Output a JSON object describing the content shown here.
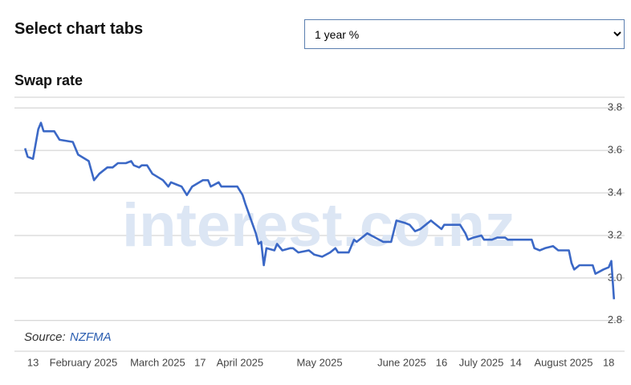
{
  "header": {
    "title": "Select chart tabs",
    "selector": "1 year %"
  },
  "chart_data": {
    "type": "line",
    "title": "Swap rate",
    "watermark": "interest.co.nz",
    "source": {
      "label": "Source:",
      "link": "NZFMA"
    },
    "x": [
      "2025-01-10",
      "2025-01-11",
      "2025-01-13",
      "2025-01-15",
      "2025-01-16",
      "2025-01-17",
      "2025-01-21",
      "2025-01-23",
      "2025-01-28",
      "2025-01-30",
      "2025-02-03",
      "2025-02-05",
      "2025-02-07",
      "2025-02-10",
      "2025-02-12",
      "2025-02-14",
      "2025-02-17",
      "2025-02-19",
      "2025-02-20",
      "2025-02-22",
      "2025-02-23",
      "2025-02-25",
      "2025-02-27",
      "2025-03-03",
      "2025-03-05",
      "2025-03-06",
      "2025-03-08",
      "2025-03-10",
      "2025-03-12",
      "2025-03-14",
      "2025-03-18",
      "2025-03-20",
      "2025-03-21",
      "2025-03-24",
      "2025-03-25",
      "2025-03-28",
      "2025-03-31",
      "2025-04-02",
      "2025-04-03",
      "2025-04-05",
      "2025-04-07",
      "2025-04-08",
      "2025-04-09",
      "2025-04-10",
      "2025-04-11",
      "2025-04-14",
      "2025-04-15",
      "2025-04-17",
      "2025-04-20",
      "2025-04-21",
      "2025-04-23",
      "2025-04-27",
      "2025-04-29",
      "2025-05-02",
      "2025-05-05",
      "2025-05-07",
      "2025-05-08",
      "2025-05-12",
      "2025-05-14",
      "2025-05-15",
      "2025-05-17",
      "2025-05-19",
      "2025-05-22",
      "2025-05-25",
      "2025-05-28",
      "2025-05-30",
      "2025-06-02",
      "2025-06-04",
      "2025-06-06",
      "2025-06-08",
      "2025-06-10",
      "2025-06-12",
      "2025-06-13",
      "2025-06-16",
      "2025-06-17",
      "2025-06-23",
      "2025-06-25",
      "2025-06-26",
      "2025-06-28",
      "2025-07-01",
      "2025-07-02",
      "2025-07-05",
      "2025-07-07",
      "2025-07-10",
      "2025-07-11",
      "2025-07-20",
      "2025-07-21",
      "2025-07-23",
      "2025-07-25",
      "2025-07-28",
      "2025-07-30",
      "2025-08-03",
      "2025-08-04",
      "2025-08-05",
      "2025-08-07",
      "2025-08-12",
      "2025-08-13",
      "2025-08-16",
      "2025-08-18",
      "2025-08-19",
      "2025-08-20"
    ],
    "series": [
      {
        "name": "Swap rate",
        "color": "#3b68c6",
        "values": [
          3.61,
          3.57,
          3.56,
          3.7,
          3.73,
          3.69,
          3.69,
          3.65,
          3.64,
          3.58,
          3.55,
          3.46,
          3.49,
          3.52,
          3.52,
          3.54,
          3.54,
          3.55,
          3.53,
          3.52,
          3.53,
          3.53,
          3.49,
          3.46,
          3.43,
          3.45,
          3.44,
          3.43,
          3.39,
          3.43,
          3.46,
          3.46,
          3.43,
          3.45,
          3.43,
          3.43,
          3.43,
          3.39,
          3.35,
          3.28,
          3.21,
          3.16,
          3.17,
          3.06,
          3.14,
          3.13,
          3.16,
          3.13,
          3.14,
          3.14,
          3.12,
          3.13,
          3.11,
          3.1,
          3.12,
          3.14,
          3.12,
          3.12,
          3.18,
          3.17,
          3.19,
          3.21,
          3.19,
          3.17,
          3.17,
          3.27,
          3.26,
          3.25,
          3.22,
          3.23,
          3.25,
          3.27,
          3.26,
          3.23,
          3.25,
          3.25,
          3.21,
          3.18,
          3.19,
          3.2,
          3.18,
          3.18,
          3.19,
          3.19,
          3.18,
          3.18,
          3.14,
          3.13,
          3.14,
          3.15,
          3.13,
          3.13,
          3.07,
          3.04,
          3.06,
          3.06,
          3.02,
          3.04,
          3.05,
          3.08,
          2.9
        ]
      }
    ],
    "xlim": [
      "2025-01-06",
      "2025-08-24"
    ],
    "xticks": [
      {
        "value": "2025-01-13",
        "label": "13"
      },
      {
        "value": "2025-02-01",
        "label": "February 2025"
      },
      {
        "value": "2025-03-01",
        "label": "March 2025"
      },
      {
        "value": "2025-03-17",
        "label": "17"
      },
      {
        "value": "2025-04-01",
        "label": "April 2025"
      },
      {
        "value": "2025-05-01",
        "label": "May 2025"
      },
      {
        "value": "2025-06-01",
        "label": "June 2025"
      },
      {
        "value": "2025-06-16",
        "label": "16"
      },
      {
        "value": "2025-07-01",
        "label": "July 2025"
      },
      {
        "value": "2025-07-14",
        "label": "14"
      },
      {
        "value": "2025-08-01",
        "label": "August 2025"
      },
      {
        "value": "2025-08-18",
        "label": "18"
      }
    ],
    "ylim": [
      2.75,
      3.85
    ],
    "yticks": [
      {
        "value": 2.8,
        "label": "2.8"
      },
      {
        "value": 3.0,
        "label": "3.0"
      },
      {
        "value": 3.2,
        "label": "3.2"
      },
      {
        "value": 3.4,
        "label": "3.4"
      },
      {
        "value": 3.6,
        "label": "3.6"
      },
      {
        "value": 3.8,
        "label": "3.8"
      }
    ],
    "grid": true
  }
}
